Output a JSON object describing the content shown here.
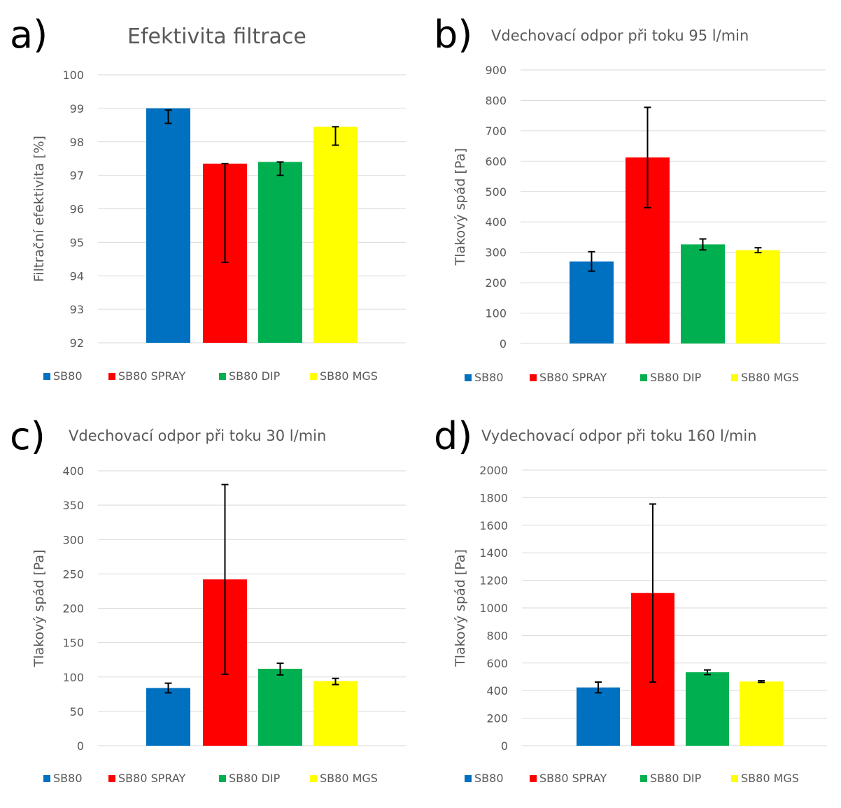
{
  "colors": {
    "SB80": "#0070C0",
    "SB80 SPRAY": "#FF0000",
    "SB80 DIP": "#00B050",
    "SB80 MGS": "#FFFF00"
  },
  "chart_data": [
    {
      "type": "bar",
      "letter": "a)",
      "title": "Efektivita filtrace",
      "ylabel": "Filtrační efektivita [%]",
      "xlabel": "",
      "ylim": [
        92,
        100
      ],
      "yticks": [
        "92",
        "93",
        "94",
        "95",
        "96",
        "97",
        "98",
        "99",
        "100"
      ],
      "series": [
        {
          "name": "SB80",
          "value": 99.0,
          "err_low": 98.55,
          "err_high": 98.95
        },
        {
          "name": "SB80 SPRAY",
          "value": 97.35,
          "err_low": 94.4,
          "err_high": 97.35
        },
        {
          "name": "SB80 DIP",
          "value": 97.4,
          "err_low": 97.0,
          "err_high": 97.4
        },
        {
          "name": "SB80 MGS",
          "value": 98.45,
          "err_low": 97.9,
          "err_high": 98.45
        }
      ],
      "legend": [
        "SB80",
        "SB80 SPRAY",
        "SB80 DIP",
        "SB80 MGS"
      ],
      "legend_position": "bottom",
      "grid": true
    },
    {
      "type": "bar",
      "letter": "b)",
      "title": "Vdechovací odpor při toku 95 l/min",
      "ylabel": "Tlakový spád [Pa]",
      "xlabel": "",
      "ylim": [
        0,
        900
      ],
      "yticks": [
        "0",
        "100",
        "200",
        "300",
        "400",
        "500",
        "600",
        "700",
        "800",
        "900"
      ],
      "series": [
        {
          "name": "SB80",
          "value": 270,
          "err_low": 238,
          "err_high": 302
        },
        {
          "name": "SB80 SPRAY",
          "value": 612,
          "err_low": 447,
          "err_high": 777
        },
        {
          "name": "SB80 DIP",
          "value": 326,
          "err_low": 308,
          "err_high": 344
        },
        {
          "name": "SB80 MGS",
          "value": 307,
          "err_low": 299,
          "err_high": 315
        }
      ],
      "legend": [
        "SB80",
        "SB80 SPRAY",
        "SB80 DIP",
        "SB80 MGS"
      ],
      "legend_position": "bottom",
      "grid": true
    },
    {
      "type": "bar",
      "letter": "c)",
      "title": "Vdechovací odpor při toku 30 l/min",
      "ylabel": "Tlakový spád [Pa]",
      "xlabel": "",
      "ylim": [
        0,
        400
      ],
      "yticks": [
        "0",
        "50",
        "100",
        "150",
        "200",
        "250",
        "300",
        "350",
        "400"
      ],
      "series": [
        {
          "name": "SB80",
          "value": 84,
          "err_low": 77,
          "err_high": 91
        },
        {
          "name": "SB80 SPRAY",
          "value": 242,
          "err_low": 104,
          "err_high": 380
        },
        {
          "name": "SB80 DIP",
          "value": 112,
          "err_low": 103,
          "err_high": 120
        },
        {
          "name": "SB80 MGS",
          "value": 94,
          "err_low": 89,
          "err_high": 98
        }
      ],
      "legend": [
        "SB80",
        "SB80 SPRAY",
        "SB80 DIP",
        "SB80 MGS"
      ],
      "legend_position": "bottom",
      "grid": true
    },
    {
      "type": "bar",
      "letter": "d)",
      "title": "Vydechovací odpor při toku 160 l/min",
      "ylabel": "Tlakový spád [Pa]",
      "xlabel": "",
      "ylim": [
        0,
        2000
      ],
      "yticks": [
        "0",
        "200",
        "400",
        "600",
        "800",
        "1000",
        "1200",
        "1400",
        "1600",
        "1800",
        "2000"
      ],
      "series": [
        {
          "name": "SB80",
          "value": 423,
          "err_low": 384,
          "err_high": 462
        },
        {
          "name": "SB80 SPRAY",
          "value": 1108,
          "err_low": 462,
          "err_high": 1754
        },
        {
          "name": "SB80 DIP",
          "value": 533,
          "err_low": 516,
          "err_high": 550
        },
        {
          "name": "SB80 MGS",
          "value": 466,
          "err_low": 460,
          "err_high": 472
        }
      ],
      "legend": [
        "SB80",
        "SB80 SPRAY",
        "SB80 DIP",
        "SB80 MGS"
      ],
      "legend_position": "bottom",
      "grid": true
    }
  ]
}
